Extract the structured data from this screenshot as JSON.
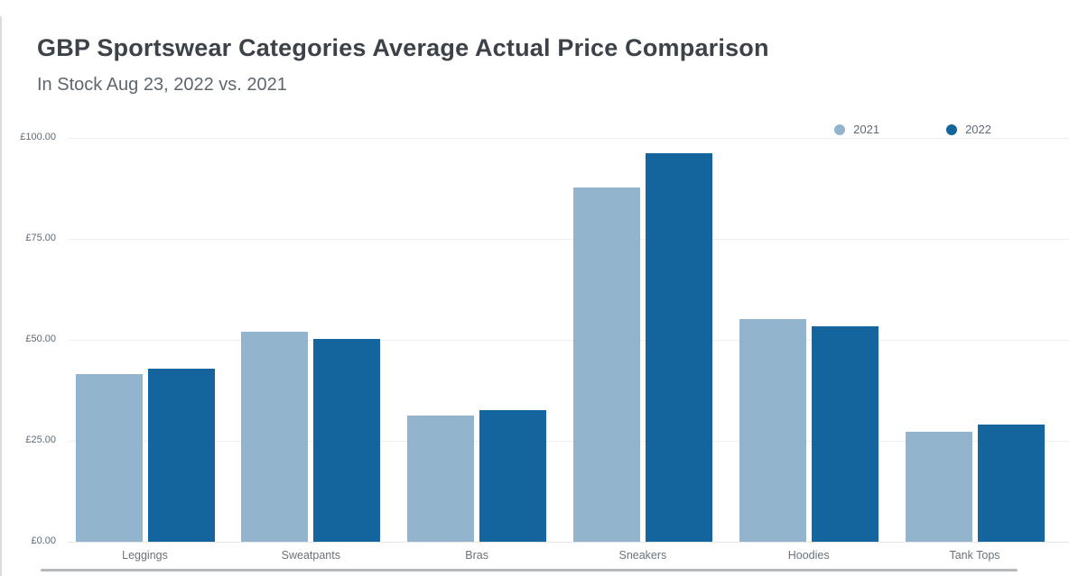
{
  "page": {
    "title": "GBP Sportswear Categories Average Actual Price Comparison",
    "subtitle": "In Stock Aug 23, 2022 vs. 2021"
  },
  "legend": {
    "position": "top-right",
    "items": [
      {
        "label": "2021",
        "color": "#92b4cd"
      },
      {
        "label": "2022",
        "color": "#14659e"
      }
    ]
  },
  "chart_data": {
    "type": "bar",
    "title": "GBP Sportswear Categories Average Actual Price Comparison",
    "subtitle": "In Stock Aug 23, 2022 vs. 2021",
    "currency": "GBP",
    "categories": [
      "Leggings",
      "Sweatpants",
      "Bras",
      "Sneakers",
      "Hoodies",
      "Tank Tops"
    ],
    "series": [
      {
        "name": "2021",
        "color": "#92b4cd",
        "values": [
          41.6,
          51.9,
          31.3,
          87.7,
          55.2,
          27.3
        ]
      },
      {
        "name": "2022",
        "color": "#14659e",
        "values": [
          42.8,
          50.3,
          32.6,
          96.2,
          53.4,
          29.0
        ]
      }
    ],
    "ylim": [
      0,
      100
    ],
    "y_ticks": [
      {
        "value": 0,
        "label": "£0.00"
      },
      {
        "value": 25,
        "label": "£25.00"
      },
      {
        "value": 50,
        "label": "£50.00"
      },
      {
        "value": 75,
        "label": "£75.00"
      },
      {
        "value": 100,
        "label": "£100.00"
      }
    ],
    "grid": "horizontal",
    "legend_position": "top-right"
  }
}
